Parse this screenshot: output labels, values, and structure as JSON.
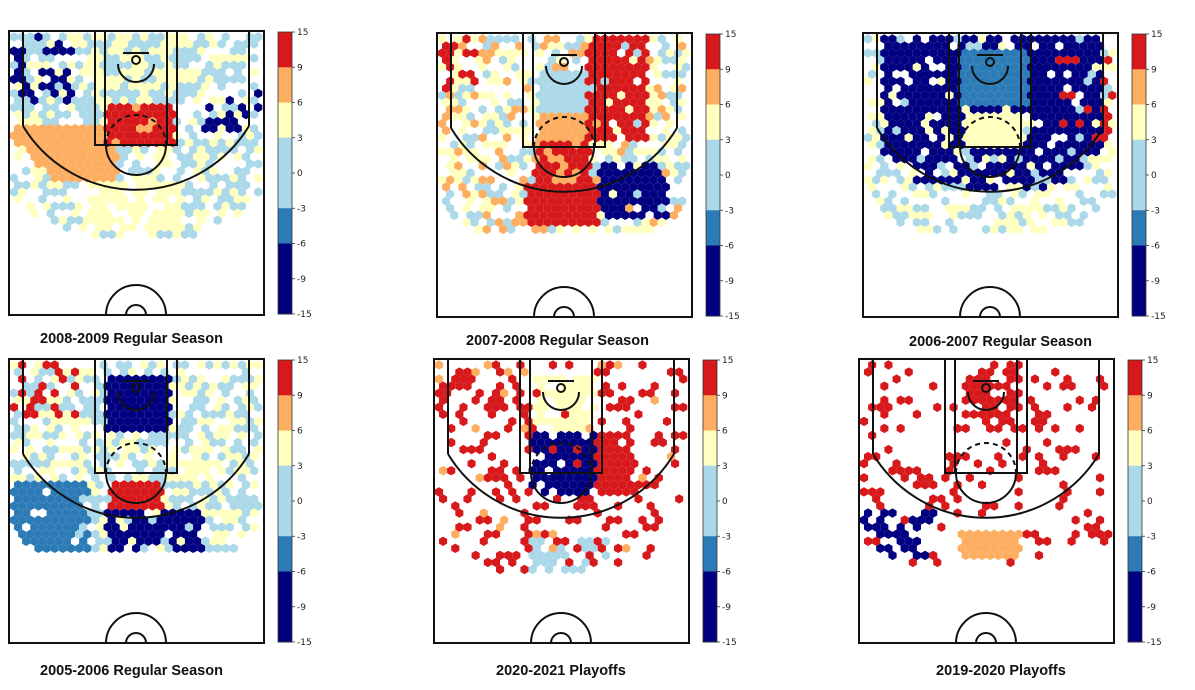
{
  "chart_data": [
    {
      "type": "heatmap",
      "title": "2008-2009 Regular Season",
      "pattern": "interior-hot"
    },
    {
      "type": "heatmap",
      "title": "2007-2008 Regular Season",
      "pattern": "right-hot"
    },
    {
      "type": "heatmap",
      "title": "2006-2007 Regular Season",
      "pattern": "cold-paint"
    },
    {
      "type": "heatmap",
      "title": "2005-2006 Regular Season",
      "pattern": "cold-rim"
    },
    {
      "type": "heatmap",
      "title": "2020-2021 Playoffs",
      "pattern": "sparse-mixed"
    },
    {
      "type": "heatmap",
      "title": "2019-2020 Playoffs",
      "pattern": "sparse-hot"
    }
  ],
  "colorbar": {
    "ticks": [
      "15",
      "9",
      "6",
      "3",
      "0",
      "-3",
      "-6",
      "-9",
      "-15"
    ],
    "colors": [
      "#d7191c",
      "#fdae61",
      "#ffffbf",
      "#abd9e9",
      "#abd9e9",
      "#2c7bb6",
      "#000080",
      "#000080"
    ]
  },
  "palette": {
    "navy": "#000080",
    "blue": "#2c7bb6",
    "lightblue": "#abd9e9",
    "yellow": "#ffffbf",
    "orange": "#fdae61",
    "red": "#d7191c"
  }
}
